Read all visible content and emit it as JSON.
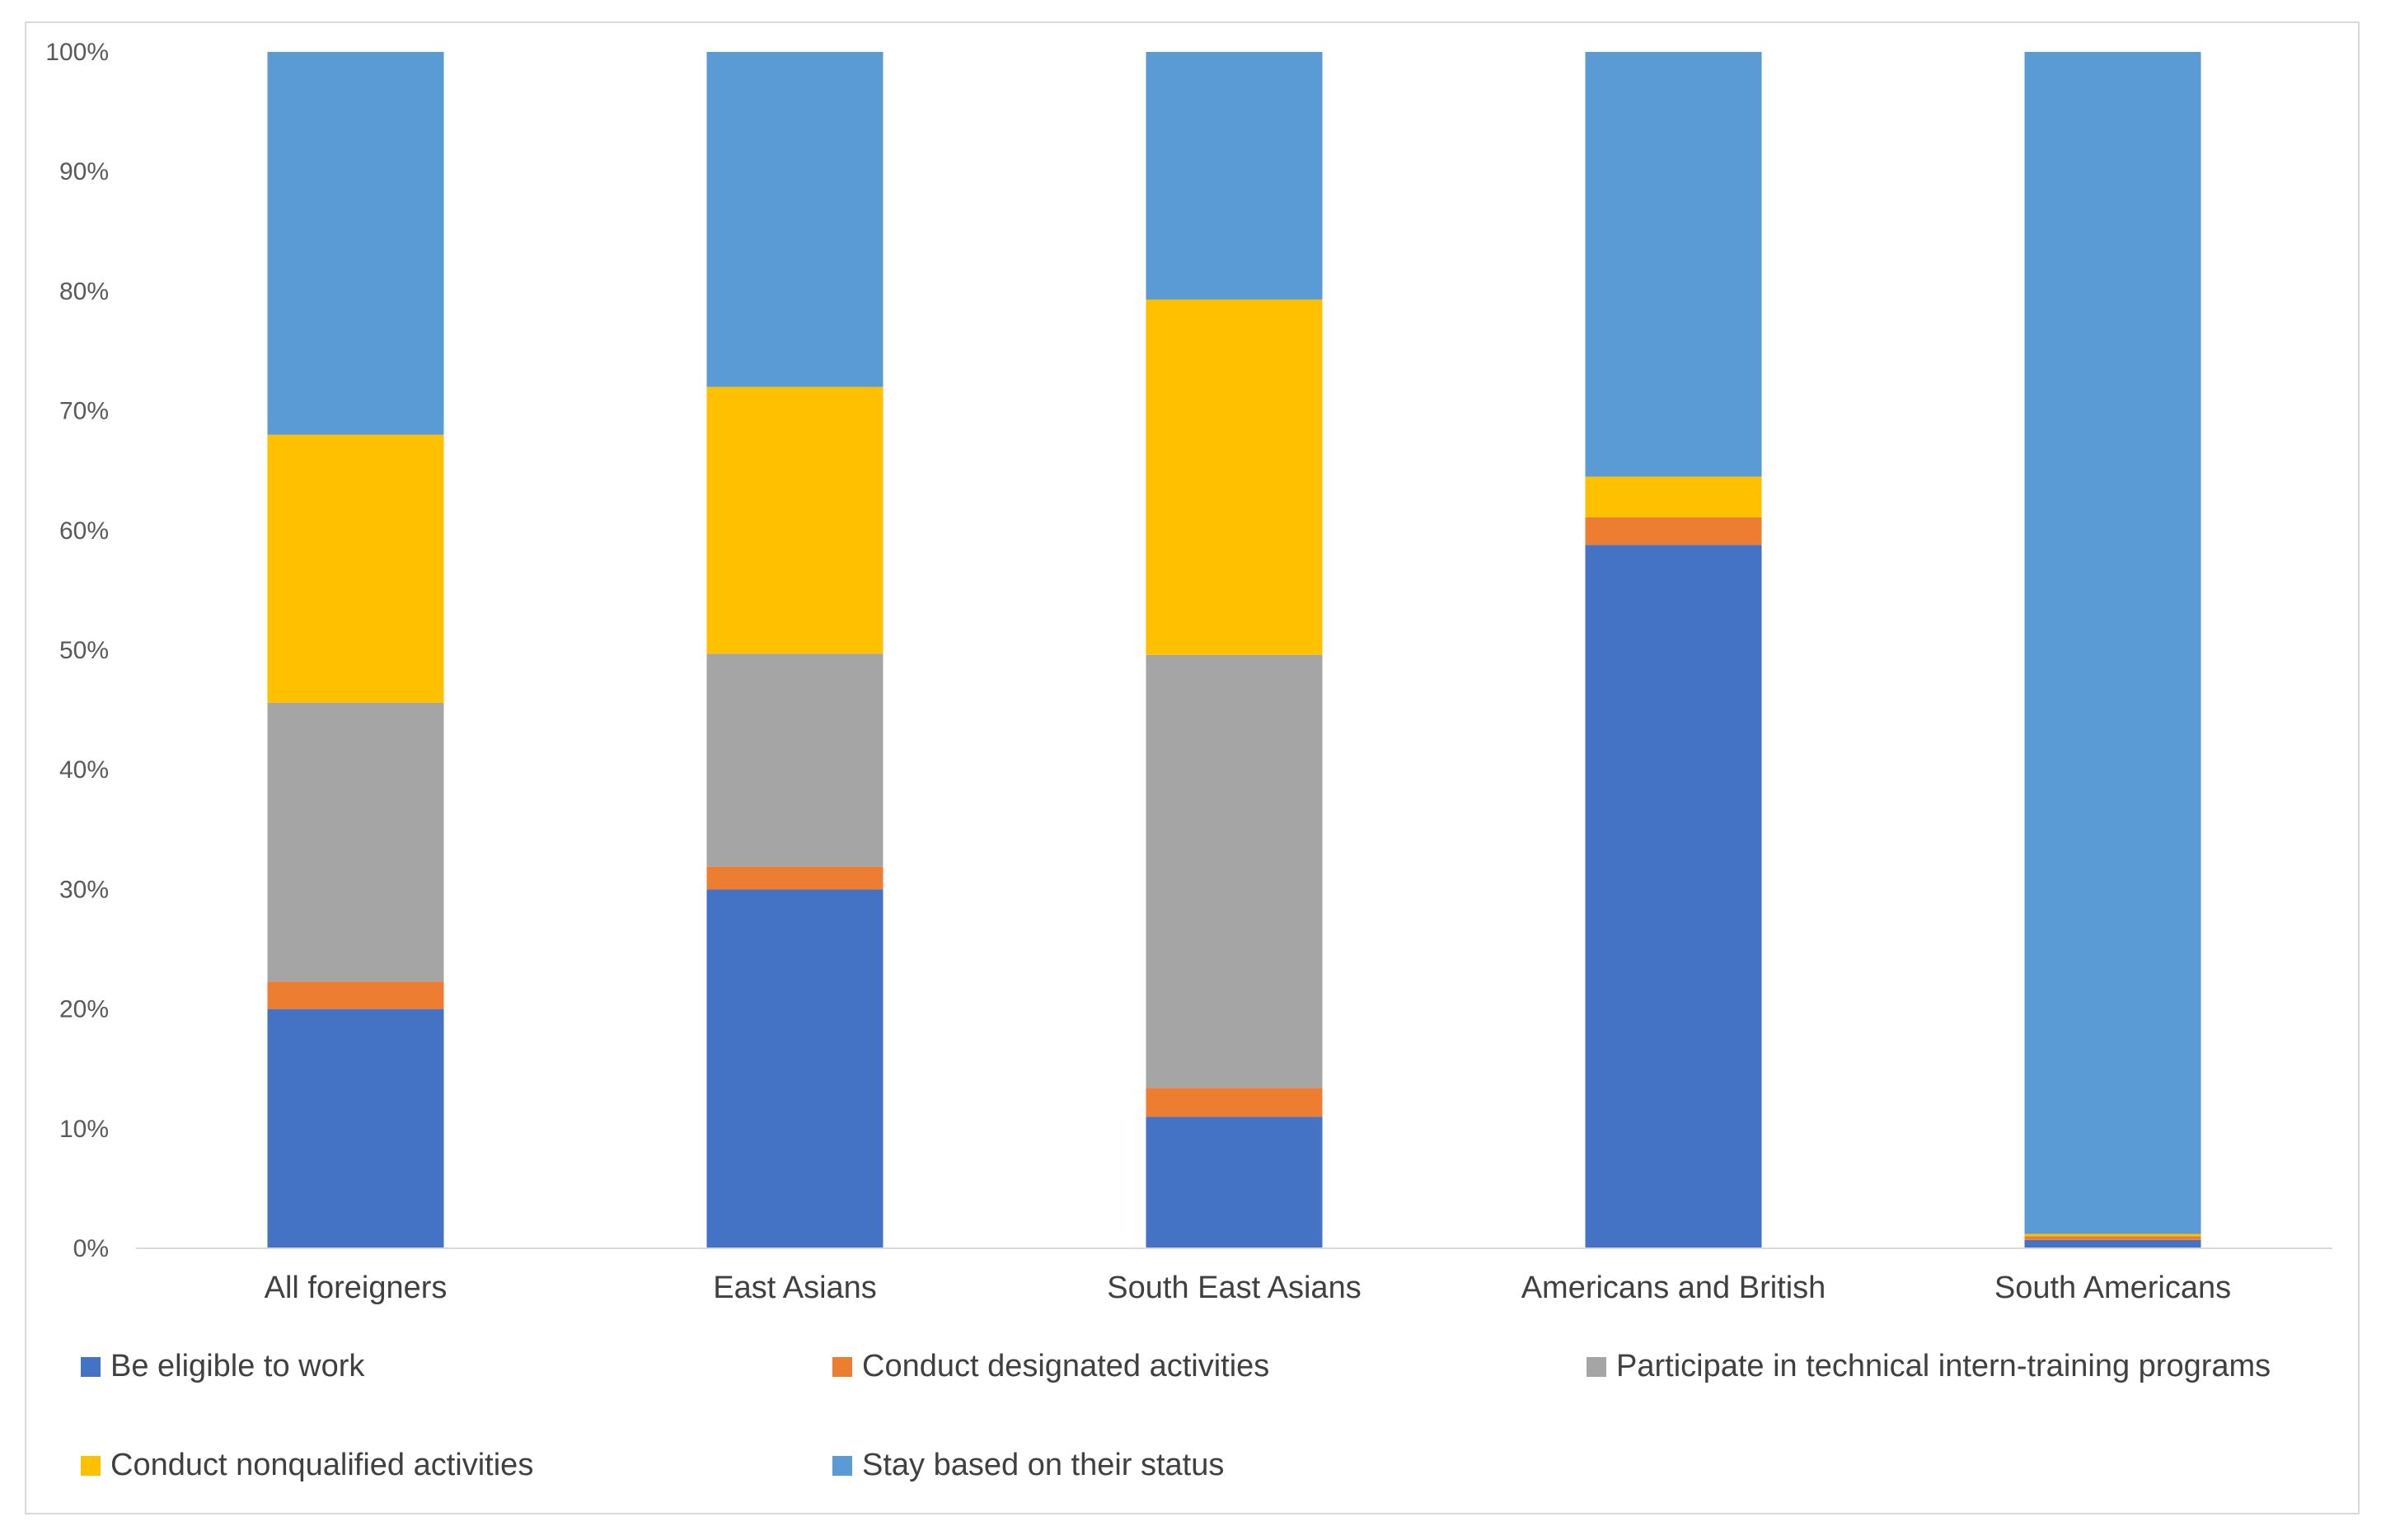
{
  "chart_data": {
    "type": "bar",
    "stacked": true,
    "percent": true,
    "title": "",
    "xlabel": "",
    "ylabel": "",
    "ylim": [
      0,
      100
    ],
    "y_ticks": [
      "0%",
      "10%",
      "20%",
      "30%",
      "40%",
      "50%",
      "60%",
      "70%",
      "80%",
      "90%",
      "100%"
    ],
    "categories": [
      "All foreigners",
      "East Asians",
      "South East Asians",
      "Americans and British",
      "South Americans"
    ],
    "series": [
      {
        "name": "Be eligible to work",
        "color": "#4472c4",
        "values": [
          20.0,
          30.0,
          11.0,
          58.8,
          0.7
        ]
      },
      {
        "name": "Conduct designated activities",
        "color": "#ed7d31",
        "values": [
          2.3,
          1.9,
          2.4,
          2.3,
          0.3
        ]
      },
      {
        "name": "Participate in technical intern-training programs",
        "color": "#a5a5a5",
        "values": [
          23.3,
          17.8,
          36.2,
          0.0,
          0.0
        ]
      },
      {
        "name": "Conduct nonqualified activities",
        "color": "#ffc000",
        "values": [
          22.4,
          22.3,
          29.7,
          3.4,
          0.2
        ]
      },
      {
        "name": "Stay based on their status",
        "color": "#5b9bd5",
        "values": [
          32.0,
          28.0,
          20.7,
          35.5,
          98.8
        ]
      }
    ],
    "grid": false,
    "legend_position": "bottom"
  }
}
